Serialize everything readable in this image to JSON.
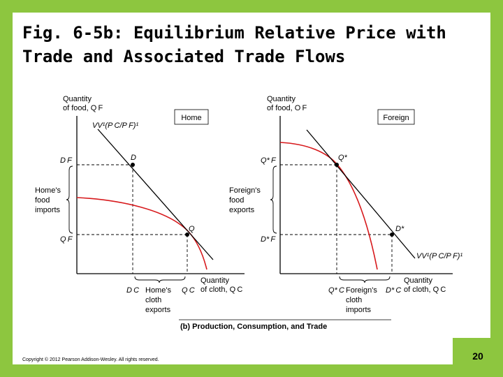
{
  "title": "Fig. 6-5b: Equilibrium Relative Price with Trade and Associated Trade Flows",
  "copyright": "Copyright © 2012 Pearson Addison-Wesley. All rights reserved.",
  "page_number": "20",
  "caption": "(b) Production, Consumption, and Trade",
  "home": {
    "box_label": "Home",
    "y_axis": [
      "Quantity",
      "of food, Q F"
    ],
    "x_axis": [
      "Quantity",
      "of cloth, Q C"
    ],
    "price_line": "VV¹(P C/P F)¹",
    "point_consumption": "D",
    "point_production": "Q",
    "y_tick_top": "D F",
    "y_tick_bottom": "Q F",
    "x_tick_left": "D C",
    "x_tick_right": "Q C",
    "imports_label": [
      "Home's",
      "food",
      "imports"
    ],
    "exports_label": [
      "Home's",
      "cloth",
      "exports"
    ]
  },
  "foreign": {
    "box_label": "Foreign",
    "y_axis": [
      "Quantity",
      "of food, O F"
    ],
    "x_axis": [
      "Quantity",
      "of cloth, Q C"
    ],
    "price_line": "VV¹(P C/P F)¹",
    "point_production": "Q*",
    "point_consumption": "D*",
    "y_tick_top": "Q* F",
    "y_tick_bottom": "D* F",
    "x_tick_left": "Q* C",
    "x_tick_right": "D* C",
    "exports_label": [
      "Foreign's",
      "food",
      "exports"
    ],
    "imports_label": [
      "Foreign's",
      "cloth",
      "imports"
    ]
  }
}
